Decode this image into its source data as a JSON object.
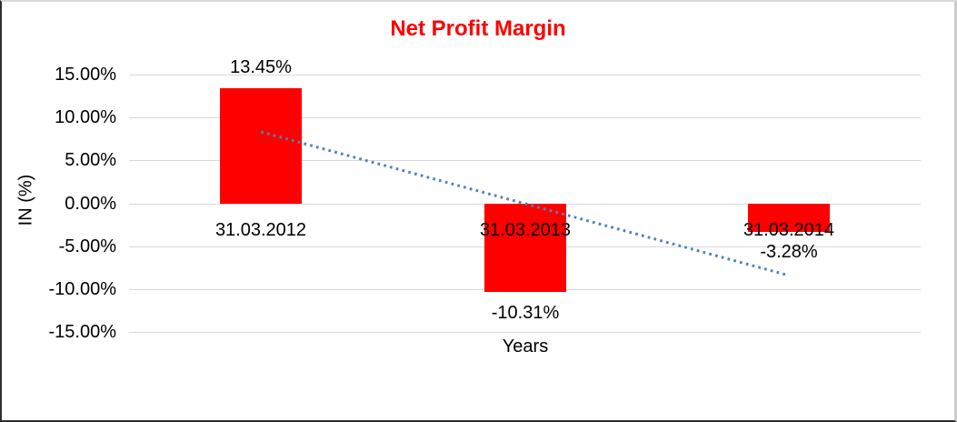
{
  "chart_data": {
    "type": "bar",
    "title": "Net Profit Margin",
    "title_color": "#FF0000",
    "categories": [
      "31.03.2012",
      "31.03.2013",
      "31.03.2014"
    ],
    "values": [
      13.45,
      -10.31,
      -3.28
    ],
    "data_labels": [
      "13.45%",
      "-10.31%",
      "-3.28%"
    ],
    "bar_color": "#FF0000",
    "xlabel": "Years",
    "ylabel": "IN (%)",
    "ylim": [
      -15,
      15
    ],
    "grid": true,
    "gridline_color": "#D9D9D9",
    "legend": "none",
    "yticks": [
      {
        "value": 15,
        "label": "15.00%"
      },
      {
        "value": 10,
        "label": "10.00%"
      },
      {
        "value": 5,
        "label": "5.00%"
      },
      {
        "value": 0,
        "label": "0.00%"
      },
      {
        "value": -5,
        "label": "-5.00%"
      },
      {
        "value": -10,
        "label": "-10.00%"
      },
      {
        "value": -15,
        "label": "-15.00%"
      }
    ],
    "trendline": {
      "type": "linear",
      "style": "dotted",
      "color": "#4F81BD",
      "start_value": 8.32,
      "end_value": -8.41
    }
  }
}
